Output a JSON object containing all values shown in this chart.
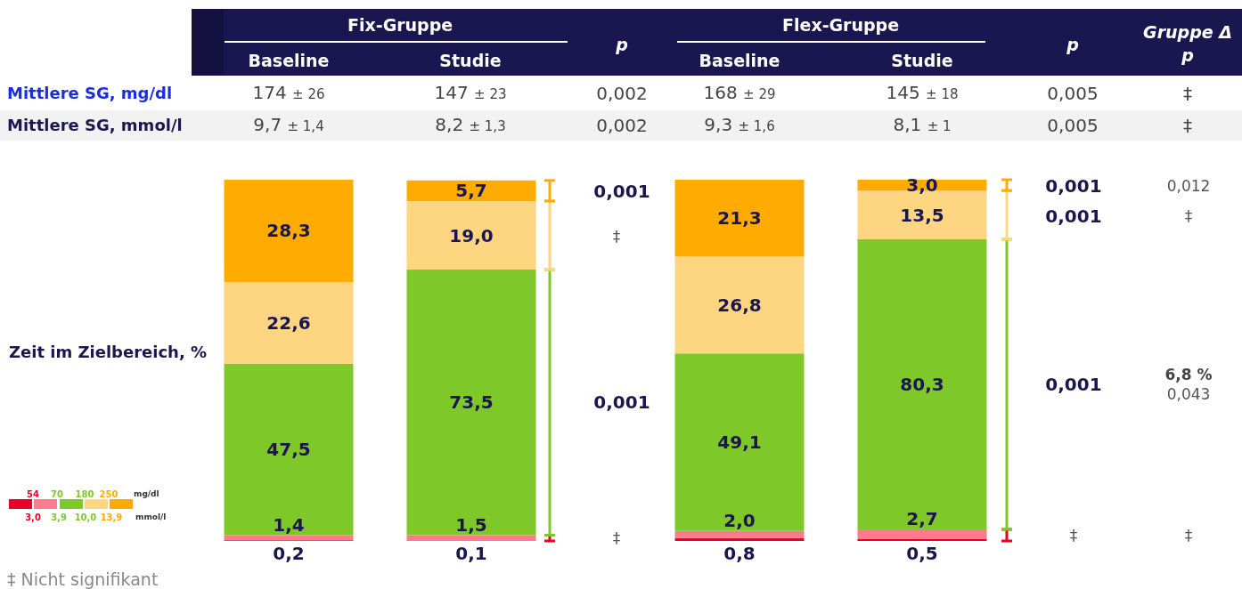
{
  "chart_data": [
    {
      "type": "other",
      "annotations": [
        "Fix-Gruppe",
        "Baseline",
        "Studie",
        "p",
        "Flex-Gruppe",
        "Baseline",
        "Studie",
        "p",
        "Gruppe Δ",
        "p",
        "Mittlere SG, mg/dl",
        "174 ± 26",
        "147 ± 23",
        "0,002",
        "168 ± 29",
        "145 ± 18",
        "0,005",
        "‡",
        "Mittlere SG, mmol/l",
        "9,7 ± 1,4",
        "8,2 ± 1,3",
        "0,002",
        "9,3 ± 1,6",
        "8,1 ± 1",
        "0,005",
        "‡"
      ]
    },
    {
      "type": "bar",
      "stacked": true,
      "ylabel": "Zeit im Zielbereich, %",
      "categories": [
        null,
        null,
        null,
        null
      ],
      "series": [
        {
          "color": "#e8002a",
          "values": [
            0.2,
            0.1,
            0.8,
            0.5
          ],
          "value_labels": [
            "0,2",
            "0,1",
            "0,8",
            "0,5"
          ]
        },
        {
          "color": "#ff7a8c",
          "values": [
            1.4,
            1.5,
            2.0,
            2.7
          ],
          "value_labels": [
            "1,4",
            "1,5",
            "2,0",
            "2,7"
          ]
        },
        {
          "color": "#7ec82a",
          "values": [
            47.5,
            73.5,
            49.1,
            80.3
          ],
          "value_labels": [
            "47,5",
            "73,5",
            "49,1",
            "80,3"
          ]
        },
        {
          "color": "#fed580",
          "values": [
            22.6,
            19.0,
            26.8,
            13.5
          ],
          "value_labels": [
            "22,6",
            "19,0",
            "26,8",
            "13,5"
          ]
        },
        {
          "color": "#ffab00",
          "values": [
            28.3,
            5.7,
            21.3,
            3.0
          ],
          "value_labels": [
            "28,3",
            "5,7",
            "21,3",
            "3,0"
          ]
        }
      ],
      "annotations": [
        "0,001",
        "‡",
        "0,001",
        "‡",
        "0,001",
        "0,001",
        "0,001",
        "‡",
        "0,012",
        "‡",
        "6,8 %",
        "0,043",
        "‡",
        "‡ Nicht signifikant",
        "54",
        "70",
        "180",
        "250",
        "mg/dl",
        "3,0",
        "3,9",
        "10,0",
        "13,9",
        "mmol/l"
      ]
    }
  ]
}
